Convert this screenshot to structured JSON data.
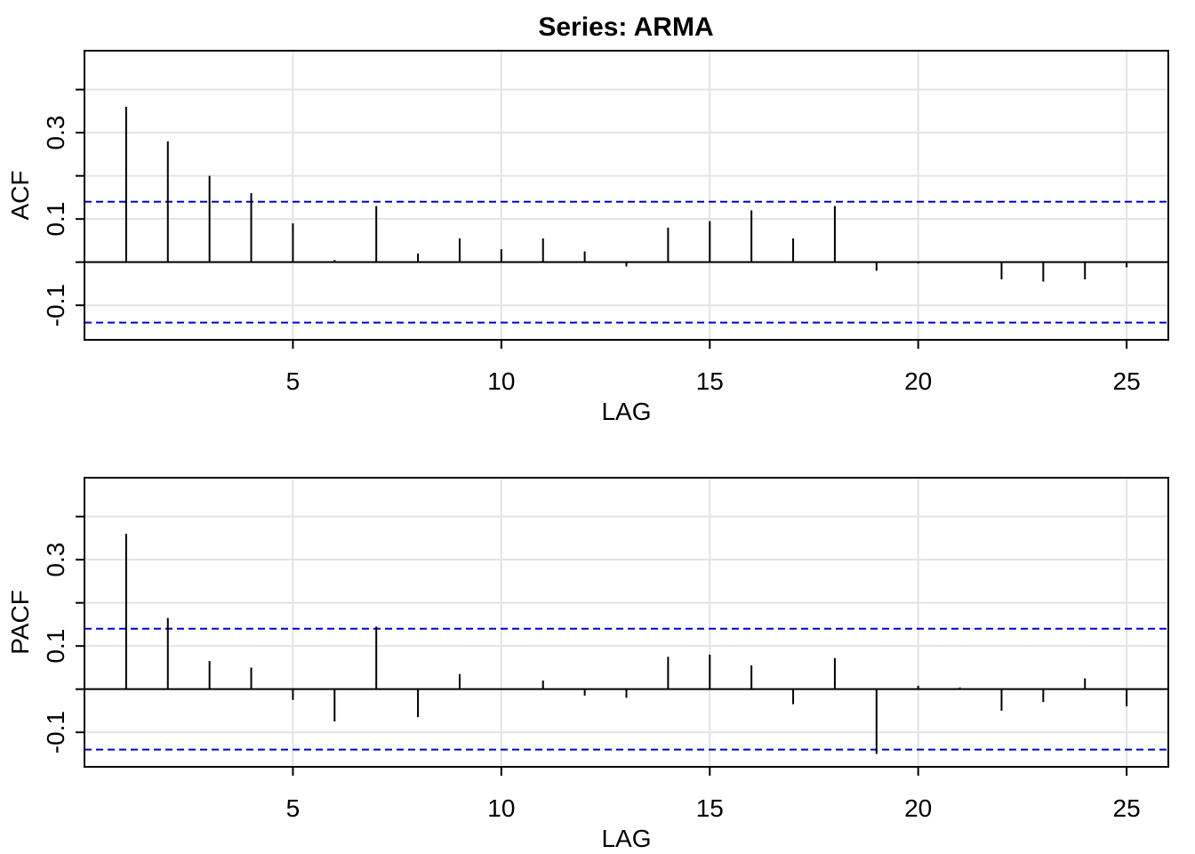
{
  "title": "Series:  ARMA",
  "chart_data": [
    {
      "type": "bar",
      "ylabel": "ACF",
      "xlabel": "LAG",
      "xlim": [
        0,
        26
      ],
      "ylim": [
        -0.18,
        0.49
      ],
      "xticks": [
        5,
        10,
        15,
        20,
        25
      ],
      "xtick_labels": [
        "5",
        "10",
        "15",
        "20",
        "25"
      ],
      "yticks": [
        -0.1,
        0.1,
        0.3
      ],
      "ytick_labels": [
        "-0.1",
        "0.1",
        "0.3"
      ],
      "ygrid": [
        -0.1,
        0,
        0.1,
        0.2,
        0.3,
        0.4
      ],
      "grid": true,
      "confidence_bounds": [
        0.14,
        -0.14
      ],
      "lags": [
        1,
        2,
        3,
        4,
        5,
        6,
        7,
        8,
        9,
        10,
        11,
        12,
        13,
        14,
        15,
        16,
        17,
        18,
        19,
        20,
        21,
        22,
        23,
        24,
        25
      ],
      "values": [
        0.36,
        0.28,
        0.2,
        0.16,
        0.09,
        0.005,
        0.13,
        0.02,
        0.055,
        0.03,
        0.055,
        0.025,
        -0.01,
        0.08,
        0.095,
        0.12,
        0.055,
        0.13,
        -0.02,
        -0.003,
        0.002,
        -0.04,
        -0.045,
        -0.04,
        -0.012
      ]
    },
    {
      "type": "bar",
      "ylabel": "PACF",
      "xlabel": "LAG",
      "xlim": [
        0,
        26
      ],
      "ylim": [
        -0.18,
        0.49
      ],
      "xticks": [
        5,
        10,
        15,
        20,
        25
      ],
      "xtick_labels": [
        "5",
        "10",
        "15",
        "20",
        "25"
      ],
      "yticks": [
        -0.1,
        0.1,
        0.3
      ],
      "ytick_labels": [
        "-0.1",
        "0.1",
        "0.3"
      ],
      "ygrid": [
        -0.1,
        0,
        0.1,
        0.2,
        0.3,
        0.4
      ],
      "grid": true,
      "confidence_bounds": [
        0.14,
        -0.14
      ],
      "lags": [
        1,
        2,
        3,
        4,
        5,
        6,
        7,
        8,
        9,
        10,
        11,
        12,
        13,
        14,
        15,
        16,
        17,
        18,
        19,
        20,
        21,
        22,
        23,
        24,
        25
      ],
      "values": [
        0.36,
        0.165,
        0.065,
        0.05,
        -0.025,
        -0.075,
        0.145,
        -0.065,
        0.035,
        0.0,
        0.02,
        -0.015,
        -0.02,
        0.075,
        0.08,
        0.055,
        -0.035,
        0.072,
        -0.15,
        0.008,
        0.004,
        -0.05,
        -0.03,
        0.025,
        -0.04
      ]
    }
  ],
  "colors": {
    "bars": "#000000",
    "bounds": "#0000cc",
    "grid": "#e3e3e3",
    "frame": "#000000",
    "zero_line": "#000000"
  }
}
